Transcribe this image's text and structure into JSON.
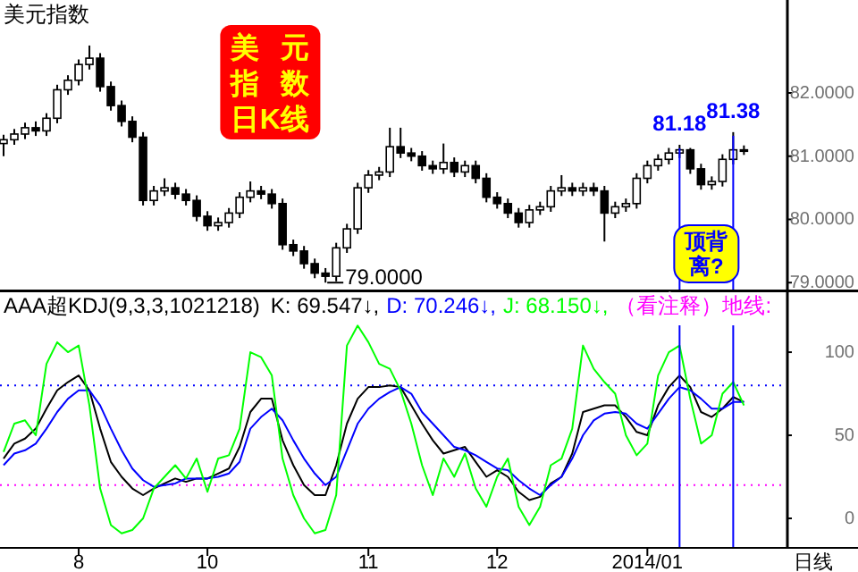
{
  "chart_data": [
    {
      "type": "candlestick",
      "title": "美元指数",
      "categories": [
        null,
        null,
        null,
        null,
        null,
        null,
        null,
        null,
        null,
        null,
        null,
        null,
        null,
        null,
        null,
        null,
        null,
        null,
        null,
        null,
        null,
        null,
        null,
        null,
        null,
        null,
        null,
        null,
        null,
        null,
        null,
        null,
        null,
        null,
        null,
        null,
        null,
        null,
        null,
        null,
        null,
        null,
        null,
        null,
        null,
        null,
        null,
        null,
        null,
        null,
        null,
        null,
        null,
        null,
        null,
        null,
        null,
        null,
        null,
        null,
        null,
        null,
        null,
        null,
        null,
        null,
        null,
        null,
        null,
        null
      ],
      "ohlc": [
        [
          81.2,
          81.34,
          81.0,
          81.26
        ],
        [
          81.26,
          81.43,
          81.18,
          81.35
        ],
        [
          81.35,
          81.53,
          81.27,
          81.45
        ],
        [
          81.45,
          81.55,
          81.32,
          81.4
        ],
        [
          81.4,
          81.68,
          81.32,
          81.6
        ],
        [
          81.6,
          82.13,
          81.52,
          82.05
        ],
        [
          82.05,
          82.28,
          81.97,
          82.2
        ],
        [
          82.2,
          82.53,
          82.12,
          82.45
        ],
        [
          82.45,
          82.75,
          82.37,
          82.55
        ],
        [
          82.55,
          82.63,
          82.02,
          82.1
        ],
        [
          82.1,
          82.18,
          81.72,
          81.8
        ],
        [
          81.8,
          81.88,
          81.47,
          81.55
        ],
        [
          81.55,
          81.63,
          81.22,
          81.3
        ],
        [
          81.3,
          81.38,
          80.22,
          80.3
        ],
        [
          80.3,
          80.53,
          80.22,
          80.45
        ],
        [
          80.45,
          80.65,
          80.37,
          80.5
        ],
        [
          80.5,
          80.58,
          80.32,
          80.4
        ],
        [
          80.4,
          80.48,
          80.22,
          80.3
        ],
        [
          80.3,
          80.38,
          79.97,
          80.05
        ],
        [
          80.05,
          80.13,
          79.82,
          79.9
        ],
        [
          79.9,
          80.03,
          79.82,
          79.95
        ],
        [
          79.95,
          80.18,
          79.87,
          80.1
        ],
        [
          80.1,
          80.43,
          80.02,
          80.35
        ],
        [
          80.35,
          80.6,
          80.27,
          80.45
        ],
        [
          80.45,
          80.53,
          80.32,
          80.4
        ],
        [
          80.4,
          80.48,
          80.17,
          80.25
        ],
        [
          80.25,
          80.33,
          79.52,
          79.6
        ],
        [
          79.6,
          79.68,
          79.42,
          79.5
        ],
        [
          79.5,
          79.58,
          79.22,
          79.3
        ],
        [
          79.3,
          79.38,
          79.07,
          79.15
        ],
        [
          79.15,
          79.23,
          79.0,
          79.1
        ],
        [
          79.1,
          79.63,
          79.02,
          79.55
        ],
        [
          79.55,
          79.93,
          79.47,
          79.85
        ],
        [
          79.85,
          80.58,
          79.77,
          80.5
        ],
        [
          80.5,
          80.78,
          80.42,
          80.7
        ],
        [
          80.7,
          80.83,
          80.62,
          80.75
        ],
        [
          80.75,
          81.45,
          80.67,
          81.15
        ],
        [
          81.15,
          81.45,
          80.97,
          81.05
        ],
        [
          81.05,
          81.13,
          80.92,
          81.0
        ],
        [
          81.0,
          81.08,
          80.77,
          80.85
        ],
        [
          80.85,
          80.93,
          80.72,
          80.8
        ],
        [
          80.8,
          81.2,
          80.72,
          80.9
        ],
        [
          80.9,
          80.98,
          80.67,
          80.75
        ],
        [
          80.75,
          80.93,
          80.67,
          80.85
        ],
        [
          80.85,
          80.93,
          80.57,
          80.65
        ],
        [
          80.65,
          80.73,
          80.27,
          80.35
        ],
        [
          80.35,
          80.43,
          80.17,
          80.25
        ],
        [
          80.25,
          80.33,
          80.02,
          80.1
        ],
        [
          80.1,
          80.18,
          79.87,
          79.95
        ],
        [
          79.95,
          80.23,
          79.87,
          80.15
        ],
        [
          80.15,
          80.28,
          80.07,
          80.2
        ],
        [
          80.2,
          80.53,
          80.12,
          80.45
        ],
        [
          80.45,
          80.7,
          80.37,
          80.5
        ],
        [
          80.5,
          80.58,
          80.37,
          80.45
        ],
        [
          80.45,
          80.58,
          80.37,
          80.5
        ],
        [
          80.5,
          80.58,
          80.37,
          80.45
        ],
        [
          80.45,
          80.53,
          79.65,
          80.1
        ],
        [
          80.1,
          80.28,
          80.02,
          80.2
        ],
        [
          80.2,
          80.33,
          80.12,
          80.25
        ],
        [
          80.25,
          80.73,
          80.17,
          80.65
        ],
        [
          80.65,
          80.93,
          80.57,
          80.85
        ],
        [
          80.85,
          81.03,
          80.77,
          80.95
        ],
        [
          80.95,
          81.13,
          80.87,
          81.05
        ],
        [
          81.05,
          81.18,
          80.97,
          81.1
        ],
        [
          81.1,
          81.13,
          80.72,
          80.8
        ],
        [
          80.8,
          80.88,
          80.47,
          80.55
        ],
        [
          80.55,
          80.68,
          80.47,
          80.6
        ],
        [
          80.6,
          81.03,
          80.52,
          80.95
        ],
        [
          80.95,
          81.38,
          80.87,
          81.1
        ],
        [
          81.1,
          81.17,
          81.02,
          81.1
        ]
      ],
      "ylim": [
        78.89,
        83.47
      ],
      "yticks": [
        {
          "value": 79,
          "label": "79.0000"
        },
        {
          "value": 80,
          "label": "80.0000"
        },
        {
          "value": 81,
          "label": "81.0000"
        },
        {
          "value": 82,
          "label": "82.0000"
        }
      ],
      "tick_labels": "y",
      "annotations": [
        "美元指数日K线",
        "79.0000",
        {
          "text": "81.18",
          "y": 81.18
        },
        {
          "text": "81.38",
          "y": 81.38
        },
        "顶背离?"
      ]
    },
    {
      "type": "line",
      "title": "AAA超KDJ(9,3,3,1021218)",
      "xlabel": "日线",
      "categories": [
        null,
        null,
        null,
        null,
        null,
        null,
        null,
        "8",
        null,
        null,
        null,
        null,
        null,
        null,
        null,
        null,
        null,
        null,
        null,
        "10",
        null,
        null,
        null,
        null,
        null,
        null,
        null,
        null,
        null,
        null,
        null,
        null,
        null,
        null,
        "11",
        null,
        null,
        null,
        null,
        null,
        null,
        null,
        null,
        null,
        null,
        null,
        "12",
        null,
        null,
        null,
        null,
        null,
        null,
        null,
        null,
        null,
        null,
        null,
        null,
        null,
        "2014/01",
        null,
        null,
        null,
        null,
        null,
        null,
        null,
        null,
        null
      ],
      "series": [
        {
          "name": "K: 69.547↓,",
          "color": "#000000",
          "values": [
            36,
            45,
            48,
            54,
            66,
            77,
            82,
            86,
            77,
            54,
            34,
            25,
            18,
            14,
            18,
            21,
            24,
            22,
            24,
            24,
            27,
            30,
            43,
            64,
            72,
            72,
            47,
            32,
            20,
            14,
            14,
            32,
            57,
            72,
            79,
            79,
            80,
            79,
            68,
            57,
            47,
            39,
            41,
            43,
            34,
            25,
            29,
            25,
            16,
            11,
            13,
            21,
            25,
            39,
            64,
            66,
            68,
            68,
            61,
            52,
            50,
            68,
            79,
            86,
            79,
            64,
            61,
            66,
            73,
            70
          ]
        },
        {
          "name": "D: 70.246↓,",
          "color": "#0000ff",
          "values": [
            32,
            39,
            41,
            45,
            54,
            64,
            72,
            77,
            77,
            68,
            54,
            41,
            30,
            23,
            19,
            20,
            21,
            24,
            24,
            24,
            25,
            27,
            34,
            54,
            61,
            66,
            59,
            47,
            36,
            27,
            20,
            25,
            41,
            57,
            66,
            72,
            76,
            79,
            75,
            64,
            57,
            50,
            43,
            41,
            38,
            34,
            30,
            29,
            23,
            18,
            14,
            20,
            25,
            36,
            50,
            59,
            63,
            64,
            63,
            57,
            54,
            63,
            72,
            79,
            77,
            72,
            66,
            66,
            70,
            70
          ]
        },
        {
          "name": "J: 68.150↓,",
          "color": "#00ff00",
          "values": [
            40,
            57,
            59,
            50,
            93,
            106,
            100,
            104,
            68,
            18,
            -4,
            -9,
            -7,
            0,
            18,
            25,
            32,
            24,
            36,
            16,
            36,
            38,
            54,
            100,
            97,
            86,
            36,
            14,
            0,
            -9,
            -7,
            14,
            104,
            116,
            106,
            93,
            90,
            77,
            57,
            32,
            14,
            36,
            25,
            39,
            18,
            7,
            25,
            36,
            7,
            -4,
            7,
            32,
            36,
            54,
            104,
            90,
            82,
            75,
            50,
            38,
            45,
            86,
            100,
            104,
            72,
            45,
            50,
            75,
            82,
            68
          ]
        }
      ],
      "ylim": [
        -17.2,
        136.6
      ],
      "yticks": [
        0,
        50,
        100
      ],
      "legend": "top",
      "ref_lines": [
        {
          "axis": "y",
          "value": 80,
          "color": "#0000ff",
          "line_style": "dotted"
        },
        {
          "axis": "y",
          "value": 20,
          "color": "#ff00ff",
          "line_style": "dotted",
          "label": "（看注释）地线:"
        }
      ]
    }
  ]
}
